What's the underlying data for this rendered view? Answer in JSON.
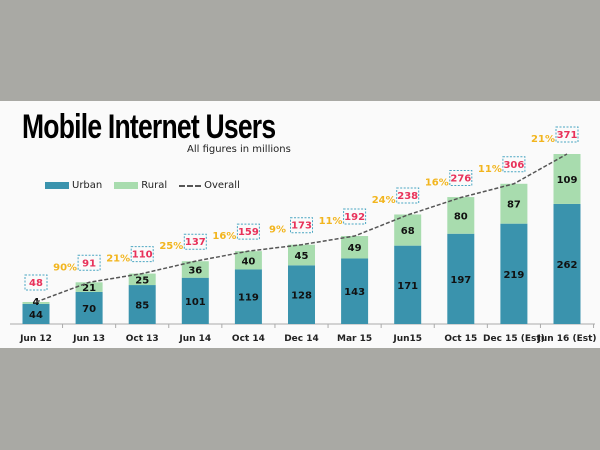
{
  "chart_data": {
    "type": "bar",
    "stacked": true,
    "title": "Mobile Internet Users",
    "subtitle": "All figures in millions",
    "categories": [
      "Jun 12",
      "Jun 13",
      "Oct 13",
      "Jun 14",
      "Oct 14",
      "Dec 14",
      "Mar 15",
      "Jun15",
      "Oct 15",
      "Dec 15 (Est)",
      "Jun 16 (Est)"
    ],
    "series": [
      {
        "name": "Urban",
        "color": "#3a93ad",
        "values": [
          44,
          70,
          85,
          101,
          119,
          128,
          143,
          171,
          197,
          219,
          262
        ]
      },
      {
        "name": "Rural",
        "color": "#a8dcae",
        "values": [
          4,
          21,
          25,
          36,
          40,
          45,
          49,
          68,
          80,
          87,
          109
        ]
      }
    ],
    "overall": {
      "name": "Overall",
      "color": "#555555",
      "values": [
        48,
        91,
        110,
        137,
        159,
        173,
        192,
        238,
        276,
        306,
        371
      ]
    },
    "growth_labels": [
      "",
      "90%",
      "21%",
      "25%",
      "16%",
      "9%",
      "11%",
      "24%",
      "16%",
      "11%",
      "21%"
    ],
    "total_label_color": "#e8325a",
    "growth_label_color": "#f2b51e",
    "legend_position": "top-left",
    "ylim": [
      0,
      371
    ],
    "grid": false
  }
}
